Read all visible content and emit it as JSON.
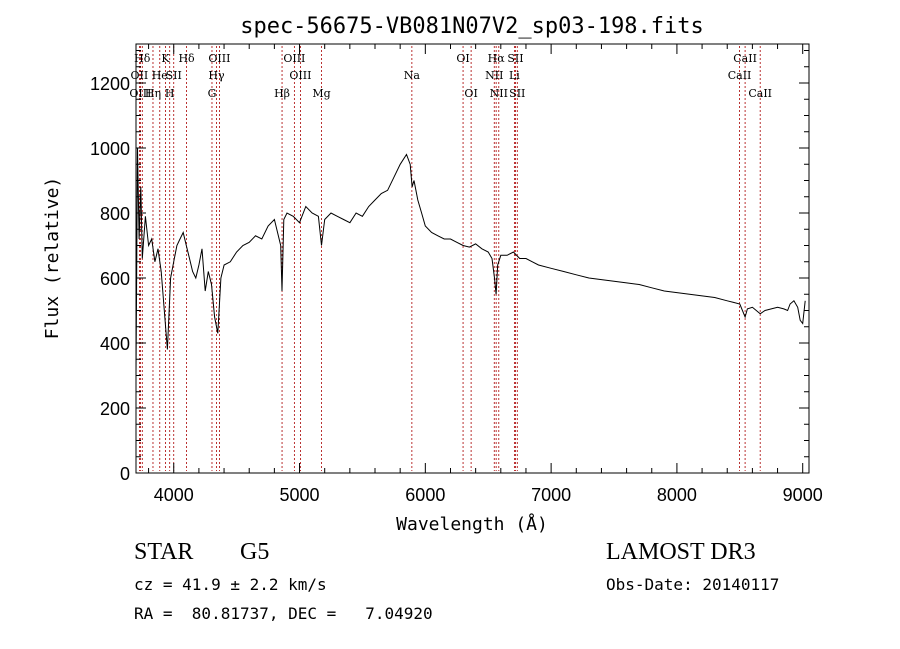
{
  "chart_data": {
    "type": "line",
    "title": "spec-56675-VB081N07V2_sp03-198.fits",
    "xlabel": "Wavelength (Å)",
    "ylabel": "Flux (relative)",
    "xlim": [
      3700,
      9050
    ],
    "ylim": [
      0,
      1320
    ],
    "xticks": [
      4000,
      5000,
      6000,
      7000,
      8000,
      9000
    ],
    "yticks": [
      0,
      200,
      400,
      600,
      800,
      1000,
      1200
    ],
    "xtick_labels": [
      "4000",
      "5000",
      "6000",
      "7000",
      "8000",
      "9000"
    ],
    "ytick_labels": [
      "0",
      "200",
      "400",
      "600",
      "800",
      "1000",
      "1200"
    ],
    "series": [
      {
        "name": "flux",
        "x": [
          3700,
          3712,
          3725,
          3738,
          3750,
          3775,
          3800,
          3825,
          3850,
          3875,
          3900,
          3925,
          3950,
          3975,
          4000,
          4025,
          4050,
          4075,
          4100,
          4125,
          4150,
          4175,
          4200,
          4225,
          4250,
          4275,
          4300,
          4325,
          4350,
          4375,
          4400,
          4450,
          4500,
          4550,
          4600,
          4650,
          4700,
          4750,
          4800,
          4850,
          4861,
          4875,
          4900,
          4950,
          5000,
          5050,
          5100,
          5150,
          5175,
          5200,
          5250,
          5300,
          5350,
          5400,
          5450,
          5500,
          5550,
          5600,
          5650,
          5700,
          5750,
          5800,
          5850,
          5880,
          5895,
          5910,
          5940,
          5970,
          6000,
          6050,
          6100,
          6150,
          6200,
          6250,
          6300,
          6350,
          6400,
          6450,
          6500,
          6530,
          6550,
          6563,
          6575,
          6600,
          6650,
          6700,
          6750,
          6800,
          6850,
          6900,
          7000,
          7100,
          7200,
          7300,
          7400,
          7500,
          7600,
          7700,
          7800,
          7900,
          8000,
          8100,
          8200,
          8300,
          8400,
          8450,
          8500,
          8542,
          8560,
          8600,
          8662,
          8700,
          8750,
          8800,
          8850,
          8880,
          8900,
          8930,
          8960,
          8980,
          9000,
          9020
        ],
        "y": [
          300,
          1000,
          720,
          880,
          660,
          790,
          700,
          720,
          650,
          690,
          620,
          500,
          380,
          600,
          650,
          700,
          720,
          740,
          700,
          660,
          620,
          600,
          640,
          690,
          560,
          620,
          580,
          480,
          430,
          600,
          640,
          650,
          680,
          700,
          710,
          730,
          720,
          760,
          780,
          700,
          560,
          780,
          800,
          790,
          770,
          820,
          800,
          790,
          700,
          780,
          800,
          790,
          780,
          770,
          800,
          790,
          820,
          840,
          860,
          870,
          910,
          950,
          980,
          950,
          880,
          900,
          840,
          800,
          760,
          740,
          730,
          720,
          720,
          710,
          700,
          695,
          705,
          690,
          680,
          660,
          600,
          550,
          640,
          670,
          670,
          680,
          660,
          660,
          650,
          640,
          630,
          620,
          610,
          600,
          595,
          590,
          585,
          580,
          570,
          560,
          555,
          550,
          545,
          540,
          530,
          525,
          520,
          480,
          505,
          510,
          490,
          500,
          505,
          510,
          505,
          500,
          520,
          530,
          510,
          470,
          460,
          530
        ]
      }
    ],
    "line_annotations": [
      {
        "label": "Hδ",
        "wavelength": 3750,
        "row": 0
      },
      {
        "label": "OII",
        "wavelength": 3727,
        "row": 1
      },
      {
        "label": "OIII",
        "wavelength": 3735,
        "row": 2
      },
      {
        "label": "He",
        "wavelength": 3889,
        "row": 1
      },
      {
        "label": "Hη",
        "wavelength": 3835,
        "row": 2
      },
      {
        "label": "K",
        "wavelength": 3934,
        "row": 0
      },
      {
        "label": "SII",
        "wavelength": 4000,
        "row": 1
      },
      {
        "label": "H",
        "wavelength": 3968,
        "row": 2
      },
      {
        "label": "Hδ",
        "wavelength": 4102,
        "row": 0
      },
      {
        "label": "OIII",
        "wavelength": 4363,
        "row": 0
      },
      {
        "label": "Hγ",
        "wavelength": 4340,
        "row": 1
      },
      {
        "label": "G",
        "wavelength": 4304,
        "row": 2
      },
      {
        "label": "OIII",
        "wavelength": 4959,
        "row": 0
      },
      {
        "label": "OIII",
        "wavelength": 5007,
        "row": 1
      },
      {
        "label": "Hβ",
        "wavelength": 4861,
        "row": 2
      },
      {
        "label": "Mg",
        "wavelength": 5175,
        "row": 2
      },
      {
        "label": "Na",
        "wavelength": 5893,
        "row": 1
      },
      {
        "label": "OI",
        "wavelength": 6300,
        "row": 0
      },
      {
        "label": "OI",
        "wavelength": 6364,
        "row": 2
      },
      {
        "label": "Hα",
        "wavelength": 6563,
        "row": 0
      },
      {
        "label": "NII",
        "wavelength": 6548,
        "row": 1
      },
      {
        "label": "NII",
        "wavelength": 6584,
        "row": 2
      },
      {
        "label": "SII",
        "wavelength": 6717,
        "row": 0
      },
      {
        "label": "Li",
        "wavelength": 6708,
        "row": 1
      },
      {
        "label": "SII",
        "wavelength": 6731,
        "row": 2
      },
      {
        "label": "CaII",
        "wavelength": 8542,
        "row": 0
      },
      {
        "label": "CaII",
        "wavelength": 8498,
        "row": 1
      },
      {
        "label": "CaII",
        "wavelength": 8662,
        "row": 2
      }
    ],
    "colors": {
      "line": "#000000",
      "markers": "#aa0000",
      "axes": "#000000"
    }
  },
  "info": {
    "class_label": "STAR",
    "subclass": "G5",
    "survey": "LAMOST DR3",
    "cz": "cz = 41.9 ± 2.2 km/s",
    "obs_date": "Obs-Date: 20140117",
    "coords": "RA =  80.81737, DEC =   7.04920"
  }
}
